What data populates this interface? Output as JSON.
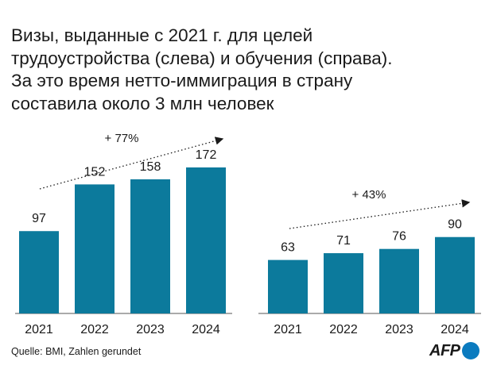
{
  "title_lines": [
    "Визы, выданные с 2021 г. для целей",
    "трудоустройства (слева) и обучения (справа).",
    "За это время нетто-иммиграция в страну",
    "составила около 3 млн человек"
  ],
  "source": "Quelle: BMI, Zahlen gerundet",
  "logo_text": "AFP",
  "colors": {
    "bar": "#0c7a9c",
    "text": "#1a1a1a",
    "logo_dot": "#0b7bbf"
  },
  "chart_data": [
    {
      "type": "bar",
      "title": "",
      "categories": [
        "2021",
        "2022",
        "2023",
        "2024"
      ],
      "values": [
        97,
        152,
        158,
        172
      ],
      "data_labels": [
        "97",
        "152",
        "158",
        "172"
      ],
      "annotation": "+ 77%",
      "ylim": [
        0,
        172
      ],
      "grid": false,
      "legend": "none"
    },
    {
      "type": "bar",
      "title": "",
      "categories": [
        "2021",
        "2022",
        "2023",
        "2024"
      ],
      "values": [
        63,
        71,
        76,
        90
      ],
      "data_labels": [
        "63",
        "71",
        "76",
        "90"
      ],
      "annotation": "+ 43%",
      "ylim": [
        0,
        172
      ],
      "grid": false,
      "legend": "none"
    }
  ]
}
